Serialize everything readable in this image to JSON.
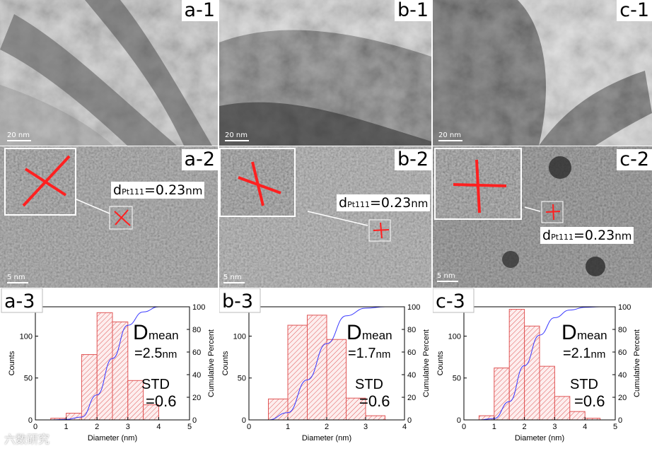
{
  "colors": {
    "hist_fill": "#f7c9c9",
    "hist_edge": "#e05555",
    "cdf_line": "#3a3aff",
    "marker_red": "#ff2020"
  },
  "panels": {
    "a1": {
      "label": "a-1",
      "scale": "20 nm"
    },
    "b1": {
      "label": "b-1",
      "scale": "20 nm"
    },
    "c1": {
      "label": "c-1",
      "scale": "20 nm"
    },
    "a2": {
      "label": "a-2",
      "scale": "5 nm",
      "d_prefix": "d",
      "d_sub": "Pt111",
      "d_value": "=0.23",
      "d_unit": "nm"
    },
    "b2": {
      "label": "b-2",
      "scale": "5 nm",
      "d_prefix": "d",
      "d_sub": "Pt111",
      "d_value": "=0.23",
      "d_unit": "nm"
    },
    "c2": {
      "label": "c-2",
      "scale": "5 nm",
      "d_prefix": "d",
      "d_sub": "Pt111",
      "d_value": "=0.23",
      "d_unit": "nm"
    }
  },
  "chart_data": [
    {
      "type": "bar",
      "panel_label": "a-3",
      "xlabel": "Diameter (nm)",
      "ylabel": "Counts",
      "y2label": "Cumulative Percent",
      "bin_edges": [
        0.5,
        1.0,
        1.5,
        2.0,
        2.5,
        3.0,
        3.5,
        4.0,
        4.5
      ],
      "values": [
        2,
        8,
        78,
        128,
        117,
        47,
        18,
        0
      ],
      "xlim": [
        0,
        5
      ],
      "xticks": [
        0,
        1,
        2,
        3,
        4,
        5
      ],
      "ylim": [
        0,
        135
      ],
      "yticks": [
        0,
        50,
        100
      ],
      "y2lim": [
        0,
        100
      ],
      "y2ticks": [
        0,
        20,
        40,
        60,
        80,
        100
      ],
      "dmean_main": "D",
      "dmean_sub": "mean",
      "dmean_value": "=2.5",
      "dmean_unit": "nm",
      "std_label": "STD",
      "std_value": "=0.6"
    },
    {
      "type": "bar",
      "panel_label": "b-3",
      "xlabel": "Diameter (nm)",
      "ylabel": "Counts",
      "y2label": "Cumulative Percent",
      "bin_edges": [
        0.5,
        1.0,
        1.5,
        2.0,
        2.5,
        3.0,
        3.5
      ],
      "values": [
        25,
        113,
        125,
        96,
        26,
        5
      ],
      "xlim": [
        0,
        4
      ],
      "xticks": [
        0,
        1,
        2,
        3,
        4
      ],
      "ylim": [
        0,
        135
      ],
      "yticks": [
        0,
        50,
        100
      ],
      "y2lim": [
        0,
        100
      ],
      "y2ticks": [
        0,
        20,
        40,
        60,
        80,
        100
      ],
      "dmean_main": "D",
      "dmean_sub": "mean",
      "dmean_value": "=1.7",
      "dmean_unit": "nm",
      "std_label": "STD",
      "std_value": "=0.6"
    },
    {
      "type": "bar",
      "panel_label": "c-3",
      "xlabel": "Diameter (nm)",
      "ylabel": "Counts",
      "y2label": "Cumulative Percent",
      "bin_edges": [
        0.5,
        1.0,
        1.5,
        2.0,
        2.5,
        3.0,
        3.5,
        4.0,
        4.5
      ],
      "values": [
        5,
        62,
        132,
        112,
        64,
        28,
        10,
        2
      ],
      "xlim": [
        0,
        5
      ],
      "xticks": [
        0,
        1,
        2,
        3,
        4,
        5
      ],
      "ylim": [
        0,
        135
      ],
      "yticks": [
        0,
        50,
        100
      ],
      "y2lim": [
        0,
        100
      ],
      "y2ticks": [
        0,
        20,
        40,
        60,
        80,
        100
      ],
      "dmean_main": "D",
      "dmean_sub": "mean",
      "dmean_value": "=2.1",
      "dmean_unit": "nm",
      "std_label": "STD",
      "std_value": "=0.6"
    }
  ],
  "watermark": "六数研究"
}
